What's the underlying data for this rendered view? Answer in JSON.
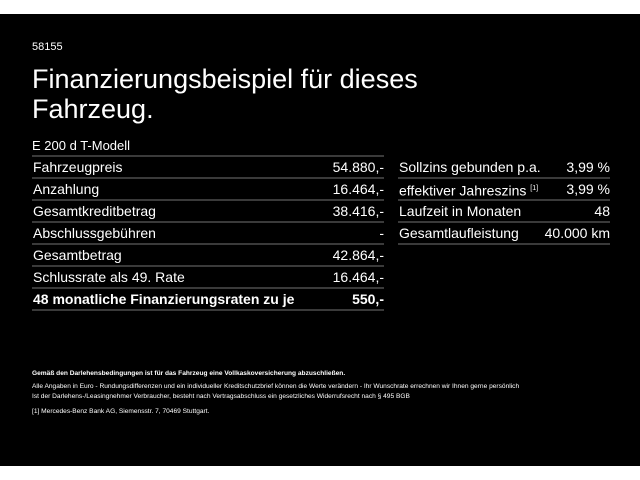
{
  "offer_id": "58155",
  "title": "Finanzierungsbeispiel für dieses Fahrzeug.",
  "model": "E 200 d T-Modell",
  "left_rows": [
    {
      "label": "Fahrzeugpreis",
      "value": "54.880,-"
    },
    {
      "label": "Anzahlung",
      "value": "16.464,-"
    },
    {
      "label": "Gesamtkreditbetrag",
      "value": "38.416,-"
    },
    {
      "label": "Abschlussgebühren",
      "value": "-"
    },
    {
      "label": "Gesamtbetrag",
      "value": "42.864,-"
    },
    {
      "label": "Schlussrate als 49. Rate",
      "value": "16.464,-"
    },
    {
      "label": "48 monatliche Finanzierungsraten zu je",
      "value": "550,-"
    }
  ],
  "right_rows": [
    {
      "label": "Sollzins gebunden p.a.",
      "value": "3,99 %"
    },
    {
      "label": "effektiver Jahreszins",
      "sup": "[1]",
      "value": "3,99 %"
    },
    {
      "label": "Laufzeit in Monaten",
      "value": "48"
    },
    {
      "label": "Gesamtlaufleistung",
      "value": "40.000 km"
    }
  ],
  "footer": {
    "bold": "Gemäß den Darlehensbedingungen ist für das Fahrzeug eine Vollkaskoversicherung abzuschließen.",
    "line1": "Alle Angaben in Euro - Rundungsdifferenzen und ein individueller Kreditschutzbrief können die Werte verändern - Ihr Wunschrate errechnen wir Ihnen gerne persönlich",
    "line2": "Ist der Darlehens-/Leasingnehmer Verbraucher, besteht nach Vertragsabschluss ein gesetzliches Widerrufsrecht nach § 495 BGB",
    "note": "[1] Mercedes-Benz Bank AG, Siemensstr. 7, 70469 Stuttgart."
  }
}
